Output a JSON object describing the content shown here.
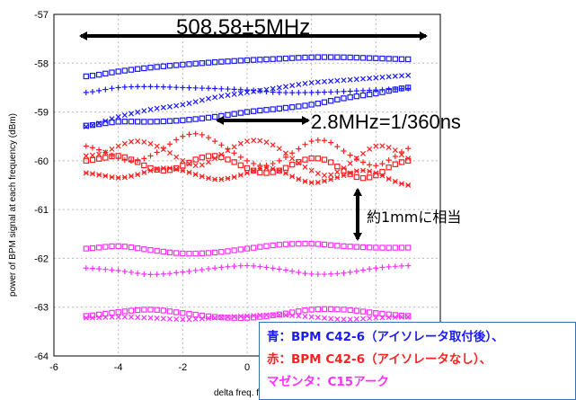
{
  "chart_data": {
    "type": "scatter",
    "xlabel": "delta freq. fro",
    "ylabel": "power of BPM signal at each frequency (dBm)",
    "xlim": [
      -6,
      6
    ],
    "ylim": [
      -64,
      -57
    ],
    "x_ticks": [
      "-6",
      "-4",
      "-2",
      "0"
    ],
    "y_ticks": [
      "-57",
      "-58",
      "-59",
      "-60",
      "-61",
      "-62",
      "-63",
      "-64"
    ],
    "grid": true,
    "colors": {
      "blue": "#1a1aff",
      "red": "#ff2020",
      "magenta": "#ff30ff",
      "arrow": "#000000",
      "legend_border": "#3a6fb0"
    },
    "annotations": {
      "span": "508.58±5MHz",
      "period": "2.8MHz=1/360ns",
      "equiv": "約1mmに相当"
    },
    "legend": {
      "blue": "青：BPM C42-6（アイソレータ取付後）、",
      "red": "赤：BPM C42-6（アイソレータなし）、",
      "magenta": "マゼンタ：C15アーク"
    },
    "series": [
      {
        "color": "blue",
        "marker": "square",
        "x": [
          -5,
          -4,
          -3,
          -2,
          -1,
          0,
          1,
          2,
          3,
          4,
          5
        ],
        "y": [
          -58.27,
          -58.17,
          -58.09,
          -58.03,
          -57.98,
          -57.94,
          -57.91,
          -57.88,
          -57.88,
          -57.9,
          -57.92
        ]
      },
      {
        "color": "blue",
        "marker": "x",
        "x": [
          -5,
          -4,
          -3,
          -2,
          -1,
          0,
          1,
          2,
          3,
          4,
          5
        ],
        "y": [
          -59.3,
          -59.1,
          -58.95,
          -58.85,
          -58.7,
          -58.6,
          -58.5,
          -58.4,
          -58.35,
          -58.3,
          -58.25
        ]
      },
      {
        "color": "blue",
        "marker": "plus",
        "x": [
          -5,
          -4,
          -3,
          -2,
          -1,
          0,
          1,
          2,
          3,
          4,
          5
        ],
        "y": [
          -58.6,
          -58.5,
          -58.48,
          -58.5,
          -58.52,
          -58.55,
          -58.6,
          -58.6,
          -58.58,
          -58.55,
          -58.52
        ]
      },
      {
        "color": "blue",
        "marker": "square",
        "x": [
          -5,
          -4,
          -3,
          -2,
          -1,
          0,
          1,
          2,
          3,
          4,
          5
        ],
        "y": [
          -59.28,
          -59.2,
          -59.2,
          -59.17,
          -59.1,
          -59.0,
          -58.93,
          -58.85,
          -58.72,
          -58.62,
          -58.5
        ]
      },
      {
        "color": "red",
        "marker": "plus",
        "x": [
          -5,
          -4.5,
          -4,
          -3.5,
          -3,
          -2.5,
          -2,
          -1.5,
          -1,
          -0.5,
          0,
          0.5,
          1,
          1.5,
          2,
          2.5,
          3,
          3.5,
          4,
          4.5,
          5
        ],
        "y": [
          -59.7,
          -59.8,
          -59.95,
          -60.0,
          -59.9,
          -59.7,
          -59.5,
          -59.45,
          -59.6,
          -59.8,
          -60.0,
          -60.1,
          -60.0,
          -59.8,
          -59.6,
          -59.6,
          -59.8,
          -60.0,
          -60.1,
          -59.95,
          -59.75
        ]
      },
      {
        "color": "red",
        "marker": "x",
        "x": [
          -5,
          -4.5,
          -4,
          -3.5,
          -3,
          -2.5,
          -2,
          -1.5,
          -1,
          -0.5,
          0,
          0.5,
          1,
          1.5,
          2,
          2.5,
          3,
          3.5,
          4,
          4.5,
          5
        ],
        "y": [
          -59.9,
          -59.85,
          -59.7,
          -59.6,
          -59.65,
          -59.8,
          -60.0,
          -60.1,
          -59.95,
          -59.75,
          -59.6,
          -59.6,
          -59.75,
          -60.0,
          -60.2,
          -60.3,
          -60.15,
          -59.9,
          -59.7,
          -59.75,
          -59.95
        ]
      },
      {
        "color": "red",
        "marker": "square",
        "x": [
          -5,
          -4.5,
          -4,
          -3.5,
          -3,
          -2.5,
          -2,
          -1.5,
          -1,
          -0.5,
          0,
          0.5,
          1,
          1.5,
          2,
          2.5,
          3,
          3.5,
          4,
          4.5,
          5
        ],
        "y": [
          -60.0,
          -59.95,
          -59.9,
          -60.0,
          -60.15,
          -60.2,
          -60.1,
          -59.95,
          -59.9,
          -60.0,
          -60.15,
          -60.25,
          -60.2,
          -60.05,
          -59.95,
          -60.0,
          -60.2,
          -60.35,
          -60.3,
          -60.1,
          -60.0
        ]
      },
      {
        "color": "red",
        "marker": "star",
        "x": [
          -5,
          -4.5,
          -4,
          -3.5,
          -3,
          -2.5,
          -2,
          -1.5,
          -1,
          -0.5,
          0,
          0.5,
          1,
          1.5,
          2,
          2.5,
          3,
          3.5,
          4,
          4.5,
          5
        ],
        "y": [
          -60.25,
          -60.3,
          -60.35,
          -60.3,
          -60.2,
          -60.15,
          -60.2,
          -60.3,
          -60.38,
          -60.35,
          -60.25,
          -60.15,
          -60.2,
          -60.35,
          -60.45,
          -60.4,
          -60.3,
          -60.2,
          -60.25,
          -60.4,
          -60.5
        ]
      },
      {
        "color": "magenta",
        "marker": "square",
        "x": [
          -5,
          -4,
          -3,
          -2,
          -1,
          0,
          1,
          2,
          3,
          4,
          5
        ],
        "y": [
          -61.8,
          -61.75,
          -61.83,
          -61.9,
          -61.88,
          -61.8,
          -61.72,
          -61.7,
          -61.75,
          -61.78,
          -61.78
        ]
      },
      {
        "color": "magenta",
        "marker": "plus",
        "x": [
          -5,
          -4,
          -3,
          -2,
          -1,
          0,
          1,
          2,
          3,
          4,
          5
        ],
        "y": [
          -62.2,
          -62.25,
          -62.33,
          -62.28,
          -62.2,
          -62.15,
          -62.22,
          -62.32,
          -62.3,
          -62.2,
          -62.15
        ]
      },
      {
        "color": "magenta",
        "marker": "square",
        "x": [
          -5,
          -4,
          -3,
          -2,
          -1,
          0,
          1,
          2,
          3,
          4,
          5
        ],
        "y": [
          -63.18,
          -63.1,
          -63.05,
          -63.12,
          -63.2,
          -63.22,
          -63.15,
          -63.05,
          -63.05,
          -63.12,
          -63.18
        ]
      },
      {
        "color": "magenta",
        "marker": "x",
        "x": [
          -5,
          -4,
          -3,
          -2,
          -1,
          0,
          1,
          2,
          3,
          4,
          5
        ],
        "y": [
          -63.22,
          -63.2,
          -63.22,
          -63.25,
          -63.22,
          -63.18,
          -63.16,
          -63.2,
          -63.25,
          -63.22,
          -63.2
        ]
      }
    ]
  }
}
